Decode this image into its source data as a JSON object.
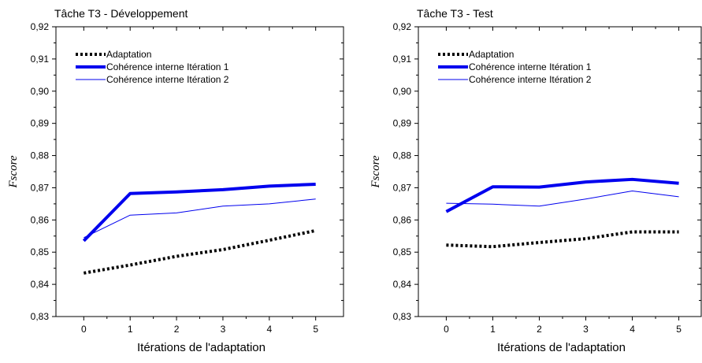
{
  "chart_data": [
    {
      "type": "line",
      "title": "Tâche T3 - Développement",
      "xlabel": "Itérations de l'adaptation",
      "ylabel": "Fscore",
      "x": [
        0,
        1,
        2,
        3,
        4,
        5
      ],
      "xlim": [
        -0.6,
        5.6
      ],
      "ylim": [
        0.83,
        0.92
      ],
      "yticks": [
        "0,83",
        "0,84",
        "0,85",
        "0,86",
        "0,87",
        "0,88",
        "0,89",
        "0,90",
        "0,91",
        "0,92"
      ],
      "xticks": [
        "0",
        "1",
        "2",
        "3",
        "4",
        "5"
      ],
      "grid": false,
      "legend_position": "top-left",
      "series": [
        {
          "name": "Adaptation",
          "style": "dotted-bold",
          "color": "#000000",
          "values": [
            0.8435,
            0.846,
            0.8487,
            0.8508,
            0.8537,
            0.8567
          ]
        },
        {
          "name": "Cohérence interne Itération 1",
          "style": "solid-bold",
          "color": "#0000ee",
          "values": [
            0.8535,
            0.8682,
            0.8687,
            0.8694,
            0.8705,
            0.8711
          ]
        },
        {
          "name": "Cohérence interne Itération 2",
          "style": "solid-thin",
          "color": "#0000ee",
          "values": [
            0.8545,
            0.8615,
            0.8622,
            0.8643,
            0.865,
            0.8665
          ]
        }
      ]
    },
    {
      "type": "line",
      "title": "Tâche T3 - Test",
      "xlabel": "Itérations de l'adaptation",
      "ylabel": "Fscore",
      "x": [
        0,
        1,
        2,
        3,
        4,
        5
      ],
      "xlim": [
        -0.6,
        5.6
      ],
      "ylim": [
        0.83,
        0.92
      ],
      "yticks": [
        "0,83",
        "0,84",
        "0,85",
        "0,86",
        "0,87",
        "0,88",
        "0,89",
        "0,90",
        "0,91",
        "0,92"
      ],
      "xticks": [
        "0",
        "1",
        "2",
        "3",
        "4",
        "5"
      ],
      "grid": false,
      "legend_position": "top-left",
      "series": [
        {
          "name": "Adaptation",
          "style": "dotted-bold",
          "color": "#000000",
          "values": [
            0.8522,
            0.8517,
            0.853,
            0.8542,
            0.8563,
            0.8563
          ]
        },
        {
          "name": "Cohérence interne Itération 1",
          "style": "solid-bold",
          "color": "#0000ee",
          "values": [
            0.8626,
            0.8703,
            0.8702,
            0.8718,
            0.8726,
            0.8714
          ]
        },
        {
          "name": "Cohérence interne Itération 2",
          "style": "solid-thin",
          "color": "#0000ee",
          "values": [
            0.8652,
            0.8649,
            0.8643,
            0.8665,
            0.869,
            0.8672
          ]
        }
      ]
    }
  ]
}
